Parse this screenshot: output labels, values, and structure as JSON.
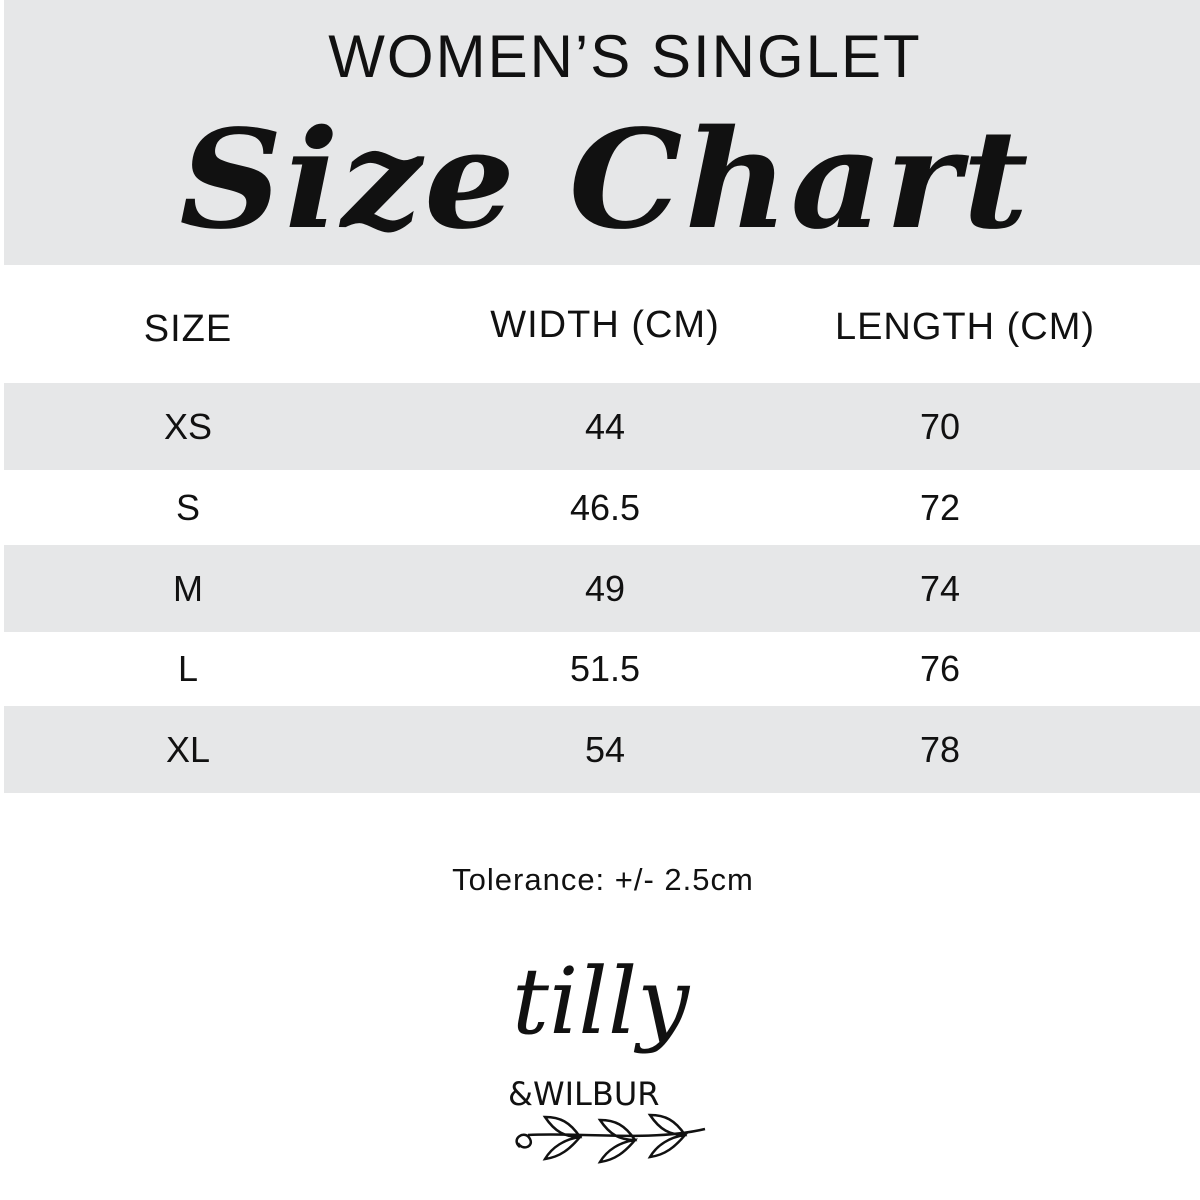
{
  "header": {
    "subtitle": "WOMEN’S SINGLET",
    "title": "Size Chart",
    "background": "#e6e7e8"
  },
  "table": {
    "columns": [
      "SIZE",
      "WIDTH (CM)",
      "LENGTH (CM)"
    ],
    "rows": [
      {
        "size": "XS",
        "width": "44",
        "length": "70"
      },
      {
        "size": "S",
        "width": "46.5",
        "length": "72"
      },
      {
        "size": "M",
        "width": "49",
        "length": "74"
      },
      {
        "size": "L",
        "width": "51.5",
        "length": "76"
      },
      {
        "size": "XL",
        "width": "54",
        "length": "78"
      }
    ],
    "stripe_color": "#e6e7e8"
  },
  "footer": {
    "tolerance": "Tolerance: +/- 2.5cm"
  },
  "logo": {
    "line1": "tilly",
    "line2": "&WILBUR"
  }
}
